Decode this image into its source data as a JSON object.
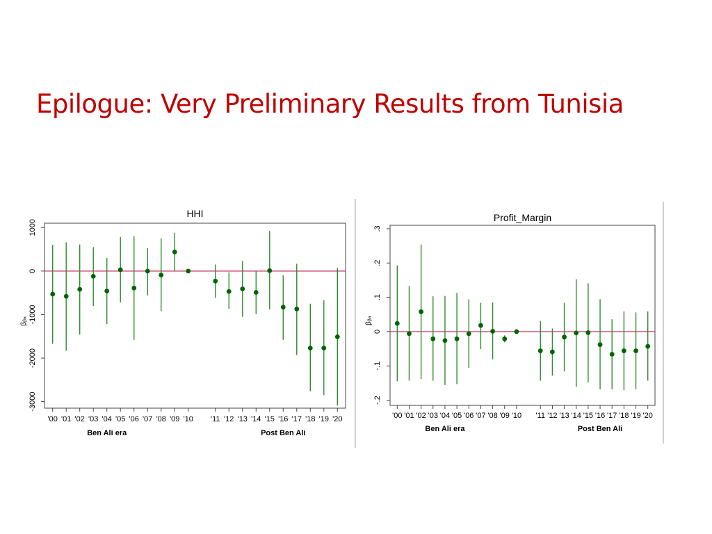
{
  "slide": {
    "title": "Epilogue: Very Preliminary Results from Tunisia"
  },
  "colors": {
    "title": "#c00000",
    "marker": "#006400",
    "interval": "#2e8b2e",
    "reference_line": "#c8285a"
  },
  "chart_data": [
    {
      "type": "scatter",
      "style": "coefficient plot with confidence intervals",
      "title": "HHI",
      "ylabel": "βᵦₐ",
      "x_tick_labels": [
        "'00",
        "'01",
        "'02",
        "'03",
        "'04",
        "'05",
        "'06",
        "'07",
        "'08",
        "'09",
        "'10",
        "'11",
        "'12",
        "'13",
        "'14",
        "'15",
        "'16",
        "'17",
        "'18",
        "'19",
        "'20"
      ],
      "x_positions": [
        0,
        1,
        2,
        3,
        4,
        5,
        6,
        7,
        8,
        9,
        10,
        12,
        13,
        14,
        15,
        16,
        17,
        18,
        19,
        20,
        21
      ],
      "group_labels": [
        {
          "label": "Ben Ali era",
          "center": 4
        },
        {
          "label": "Post Ben Ali",
          "center": 17
        }
      ],
      "y_ticks": [
        1000,
        0,
        -1000,
        -2000,
        -3000
      ],
      "y_tick_labels": [
        "1000",
        "0",
        "-1000",
        "-2000",
        "-3000"
      ],
      "xlim": [
        -0.6,
        21.6
      ],
      "ylim": [
        -3150,
        1100
      ],
      "reference_line": 0,
      "grid": false,
      "series": [
        {
          "estimate": [
            -530,
            -580,
            -420,
            -120,
            -460,
            30,
            -390,
            0,
            -90,
            440,
            0,
            -230,
            -470,
            -410,
            -490,
            10,
            -830,
            -870,
            -1770,
            -1770,
            -1510
          ],
          "ci_low": [
            -1670,
            -1830,
            -1460,
            -800,
            -1220,
            -720,
            -1580,
            -560,
            -920,
            0,
            0,
            -620,
            -870,
            -1050,
            -990,
            -880,
            -1580,
            -1930,
            -2760,
            -2850,
            -3090
          ],
          "ci_high": [
            600,
            660,
            610,
            550,
            300,
            780,
            800,
            530,
            750,
            880,
            0,
            150,
            -30,
            230,
            0,
            920,
            -100,
            170,
            -750,
            -670,
            70
          ]
        }
      ]
    },
    {
      "type": "scatter",
      "style": "coefficient plot with confidence intervals",
      "title": "Profit_Margin",
      "ylabel": "βᵦₐ",
      "x_tick_labels": [
        "'00",
        "'01",
        "'02",
        "'03",
        "'04",
        "'05",
        "'06",
        "'07",
        "'08",
        "'09",
        "'10",
        "'11",
        "'12",
        "'13",
        "'14",
        "'15",
        "'16",
        "'17",
        "'18",
        "'19",
        "'20"
      ],
      "x_positions": [
        0,
        1,
        2,
        3,
        4,
        5,
        6,
        7,
        8,
        9,
        10,
        12,
        13,
        14,
        15,
        16,
        17,
        18,
        19,
        20,
        21
      ],
      "group_labels": [
        {
          "label": "Ben Ali era",
          "center": 4
        },
        {
          "label": "Post Ben Ali",
          "center": 17
        }
      ],
      "y_ticks": [
        0.3,
        0.2,
        0.1,
        0,
        -0.1,
        -0.2
      ],
      "y_tick_labels": [
        ".3",
        ".2",
        ".1",
        "0",
        "-.1",
        "-.2"
      ],
      "xlim": [
        -0.6,
        21.6
      ],
      "ylim": [
        -0.215,
        0.31
      ],
      "reference_line": 0,
      "grid": false,
      "series": [
        {
          "estimate": [
            0.024,
            -0.006,
            0.058,
            -0.021,
            -0.026,
            -0.021,
            -0.006,
            0.018,
            0.001,
            -0.021,
            0,
            -0.056,
            -0.059,
            -0.016,
            -0.004,
            -0.003,
            -0.038,
            -0.066,
            -0.056,
            -0.056,
            -0.043
          ],
          "ci_low": [
            -0.145,
            -0.143,
            -0.138,
            -0.143,
            -0.156,
            -0.153,
            -0.106,
            -0.051,
            -0.081,
            -0.031,
            0,
            -0.143,
            -0.128,
            -0.116,
            -0.161,
            -0.148,
            -0.168,
            -0.168,
            -0.171,
            -0.168,
            -0.143
          ],
          "ci_high": [
            0.193,
            0.133,
            0.254,
            0.103,
            0.104,
            0.113,
            0.094,
            0.084,
            0.085,
            -0.011,
            0,
            0.031,
            0.009,
            0.084,
            0.153,
            0.141,
            0.094,
            0.036,
            0.059,
            0.056,
            0.059
          ]
        }
      ]
    }
  ]
}
